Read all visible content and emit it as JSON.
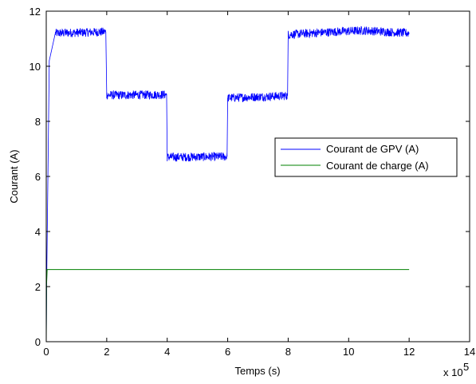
{
  "chart_data": {
    "type": "line",
    "title": "",
    "xlabel": "Temps (s)",
    "ylabel": "Courant (A)",
    "x_multiplier_label": "x 10",
    "x_multiplier_exponent": "5",
    "xlim": [
      0,
      14
    ],
    "ylim": [
      0,
      12
    ],
    "xticks": [
      "0",
      "2",
      "4",
      "6",
      "8",
      "10",
      "12",
      "14"
    ],
    "yticks": [
      "0",
      "2",
      "4",
      "6",
      "8",
      "10",
      "12"
    ],
    "grid": false,
    "legend_position": "right",
    "series": [
      {
        "name": "Courant de GPV (A)",
        "color": "#0000ff",
        "noisy": true,
        "x": [
          0,
          0.02,
          0.1,
          0.3,
          1.97,
          2.0,
          3.98,
          4.0,
          5.98,
          6.0,
          7.98,
          8.0,
          9.5,
          10.5,
          12.0
        ],
        "y": [
          0,
          2.7,
          10.2,
          11.2,
          11.25,
          8.95,
          8.97,
          6.7,
          6.72,
          8.85,
          8.93,
          11.15,
          11.25,
          11.3,
          11.2
        ]
      },
      {
        "name": "Courant de charge (A)",
        "color": "#008000",
        "noisy": false,
        "x": [
          0,
          0.01,
          0.03,
          12.0
        ],
        "y": [
          0,
          2.1,
          2.62,
          2.62
        ]
      }
    ]
  }
}
